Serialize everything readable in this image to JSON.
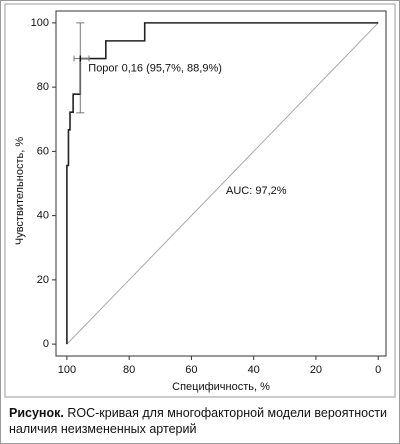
{
  "chart_data": {
    "type": "roc",
    "x_label": "Специфичность, %",
    "y_label": "Чувствительность, %",
    "x": [
      100,
      100,
      99.5,
      99.5,
      99,
      99,
      98,
      98,
      95.7,
      95.7,
      87.5,
      87.5,
      75,
      75,
      0
    ],
    "values": [
      0,
      55.6,
      55.6,
      66.7,
      66.7,
      72.2,
      72.2,
      77.8,
      77.8,
      88.9,
      88.9,
      94.4,
      94.4,
      100,
      100
    ],
    "color": "#222222",
    "reference_line": {
      "x": [
        100,
        0
      ],
      "y": [
        0,
        100
      ],
      "color": "#aaaaaa"
    },
    "threshold": {
      "x": 95.7,
      "y": 88.9,
      "x_low": 97.7,
      "x_high": 92.9,
      "y_low": 72,
      "y_high": 100,
      "color": "#777777"
    },
    "annotations": [
      "Порог 0,16 (95,7%, 88,9%)",
      "AUC: 97,2%"
    ],
    "xlim": [
      103.5,
      -2.5
    ],
    "ylim": [
      -3.7,
      103.7
    ],
    "xticks": [
      100,
      80,
      60,
      40,
      20,
      0
    ],
    "yticks": [
      0,
      20,
      40,
      60,
      80,
      100
    ],
    "grid": false
  },
  "caption": {
    "label": "Рисунок.",
    "text": "ROC-кривая для многофакторной модели вероятности наличия неизмененных артерий"
  }
}
